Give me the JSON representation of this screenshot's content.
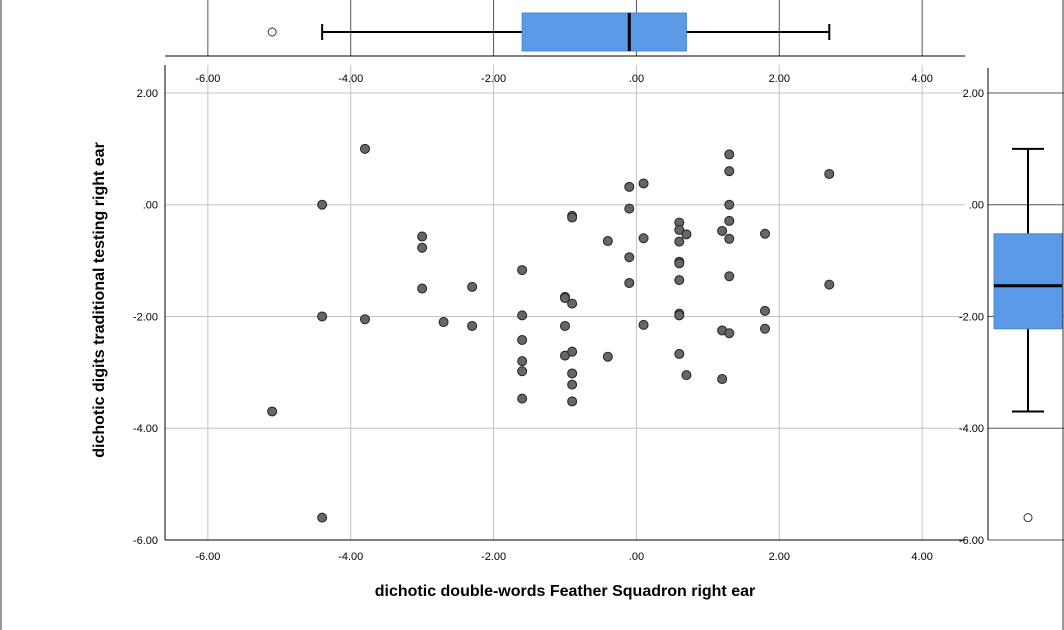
{
  "chart_data": {
    "type": "scatter",
    "xlabel": "dichotic double-words Feather Squadron right ear",
    "ylabel": "dichotic digits traditional testing right ear",
    "xlim": [
      -6.6,
      4.6
    ],
    "ylim": [
      -6.0,
      2.5
    ],
    "x_ticks": [
      "-6.00",
      "-4.00",
      "-2.00",
      ".00",
      "2.00",
      "4.00"
    ],
    "y_ticks": [
      "-6.00",
      "-4.00",
      "-2.00",
      ".00",
      "2.00"
    ],
    "grid": true,
    "point_color": "#666666",
    "box_color": "#5b9ae6",
    "points": [
      [
        -5.1,
        -3.7
      ],
      [
        -4.4,
        0.0
      ],
      [
        -4.4,
        -2.0
      ],
      [
        -4.4,
        -5.6
      ],
      [
        -3.8,
        1.0
      ],
      [
        -3.8,
        -2.05
      ],
      [
        -3.0,
        -0.57
      ],
      [
        -3.0,
        -0.77
      ],
      [
        -3.0,
        -1.5
      ],
      [
        -2.7,
        -2.1
      ],
      [
        -2.3,
        -1.47
      ],
      [
        -2.3,
        -2.17
      ],
      [
        -1.6,
        -1.17
      ],
      [
        -1.6,
        -1.98
      ],
      [
        -1.6,
        -2.42
      ],
      [
        -1.6,
        -2.8
      ],
      [
        -1.6,
        -2.98
      ],
      [
        -1.6,
        -3.47
      ],
      [
        -1.0,
        -1.65
      ],
      [
        -1.0,
        -1.67
      ],
      [
        -1.0,
        -2.17
      ],
      [
        -1.0,
        -2.7
      ],
      [
        -0.9,
        -0.2
      ],
      [
        -0.9,
        -0.23
      ],
      [
        -0.9,
        -1.77
      ],
      [
        -0.9,
        -2.63
      ],
      [
        -0.9,
        -3.02
      ],
      [
        -0.9,
        -3.22
      ],
      [
        -0.9,
        -3.52
      ],
      [
        -0.4,
        -0.65
      ],
      [
        -0.4,
        -2.72
      ],
      [
        -0.1,
        0.32
      ],
      [
        -0.1,
        -0.07
      ],
      [
        -0.1,
        -0.94
      ],
      [
        -0.1,
        -1.4
      ],
      [
        0.1,
        0.38
      ],
      [
        0.1,
        -0.6
      ],
      [
        0.1,
        -2.15
      ],
      [
        0.6,
        -0.32
      ],
      [
        0.6,
        -0.45
      ],
      [
        0.6,
        -0.66
      ],
      [
        0.6,
        -1.02
      ],
      [
        0.6,
        -1.05
      ],
      [
        0.6,
        -1.35
      ],
      [
        0.6,
        -1.95
      ],
      [
        0.6,
        -1.98
      ],
      [
        0.6,
        -2.67
      ],
      [
        0.7,
        -0.53
      ],
      [
        0.7,
        -3.05
      ],
      [
        1.2,
        -0.47
      ],
      [
        1.2,
        -2.25
      ],
      [
        1.2,
        -3.12
      ],
      [
        1.3,
        0.9
      ],
      [
        1.3,
        0.6
      ],
      [
        1.3,
        0.0
      ],
      [
        1.3,
        -0.29
      ],
      [
        1.3,
        -0.61
      ],
      [
        1.3,
        -1.28
      ],
      [
        1.3,
        -2.3
      ],
      [
        1.8,
        -0.52
      ],
      [
        1.8,
        -1.9
      ],
      [
        1.8,
        -2.22
      ],
      [
        2.7,
        0.55
      ],
      [
        2.7,
        -1.43
      ]
    ],
    "x_boxplot": {
      "whisker_low": -4.4,
      "q1": -1.6,
      "median": -0.1,
      "q3": 0.7,
      "whisker_high": 2.7,
      "outliers": [
        -5.1
      ]
    },
    "y_boxplot": {
      "whisker_low": -3.7,
      "q1": -2.22,
      "median": -1.45,
      "q3": -0.52,
      "whisker_high": 1.0,
      "outliers": [
        -5.6
      ]
    }
  }
}
